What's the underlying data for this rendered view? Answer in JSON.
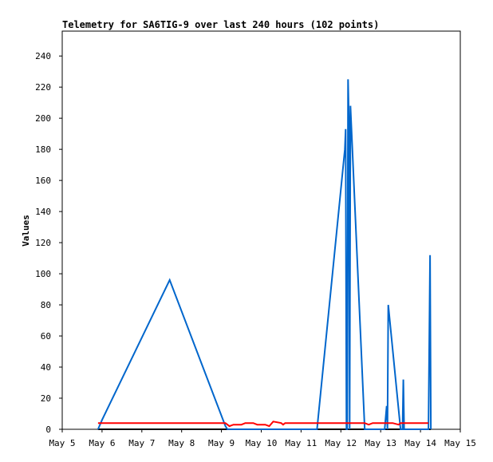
{
  "chart_data": {
    "type": "line",
    "title": "Telemetry for SA6TIG-9 over last 240 hours (102 points)",
    "xlabel": "",
    "ylabel": "Values",
    "x_ticks": [
      "May 5",
      "May 6",
      "May 7",
      "May 8",
      "May 9",
      "May 10",
      "May 11",
      "May 12",
      "May 13",
      "May 14",
      "May 15"
    ],
    "xlim": [
      0,
      10
    ],
    "x_unit": "days, May 5 00:00 = 0",
    "y_ticks": [
      0,
      20,
      40,
      60,
      80,
      100,
      120,
      140,
      160,
      180,
      200,
      220,
      240
    ],
    "ylim": [
      0,
      256
    ],
    "grid": false,
    "legend": "none",
    "series": [
      {
        "color": "#0066cc",
        "points": [
          [
            0.9,
            0
          ],
          [
            1.0,
            6
          ],
          [
            2.7,
            96
          ],
          [
            4.1,
            2
          ],
          [
            4.15,
            0
          ],
          [
            6.4,
            0
          ],
          [
            7.1,
            180
          ],
          [
            7.12,
            193
          ],
          [
            7.14,
            0
          ],
          [
            7.16,
            0
          ],
          [
            7.18,
            225
          ],
          [
            7.2,
            200
          ],
          [
            7.22,
            0
          ],
          [
            7.24,
            208
          ],
          [
            7.6,
            0
          ],
          [
            8.1,
            0
          ],
          [
            8.15,
            15
          ],
          [
            8.17,
            0
          ],
          [
            8.19,
            80
          ],
          [
            8.5,
            0
          ],
          [
            8.55,
            0
          ],
          [
            8.57,
            32
          ],
          [
            8.59,
            0
          ],
          [
            9.2,
            0
          ],
          [
            9.22,
            56
          ],
          [
            9.24,
            112
          ],
          [
            9.26,
            0
          ]
        ]
      },
      {
        "color": "#ff0000",
        "points": [
          [
            0.9,
            4
          ],
          [
            4.1,
            4
          ],
          [
            4.2,
            2
          ],
          [
            4.3,
            3
          ],
          [
            4.5,
            3
          ],
          [
            4.6,
            4
          ],
          [
            4.8,
            4
          ],
          [
            4.9,
            3
          ],
          [
            5.1,
            3
          ],
          [
            5.2,
            2
          ],
          [
            5.3,
            5
          ],
          [
            5.5,
            4
          ],
          [
            5.55,
            3
          ],
          [
            5.6,
            4
          ],
          [
            6.4,
            4
          ],
          [
            7.6,
            4
          ],
          [
            7.7,
            3
          ],
          [
            7.8,
            4
          ],
          [
            8.3,
            4
          ],
          [
            8.45,
            3
          ],
          [
            8.5,
            4
          ],
          [
            9.2,
            4
          ]
        ]
      }
    ]
  }
}
